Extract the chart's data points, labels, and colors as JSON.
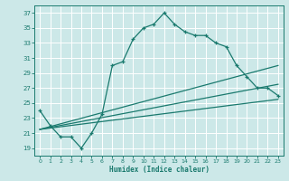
{
  "xlabel": "Humidex (Indice chaleur)",
  "bg_color": "#cce8e8",
  "grid_color": "#ffffff",
  "line_color": "#1a7a6e",
  "xlim": [
    -0.5,
    23.5
  ],
  "ylim": [
    18,
    38
  ],
  "yticks": [
    19,
    21,
    23,
    25,
    27,
    29,
    31,
    33,
    35,
    37
  ],
  "xticks": [
    0,
    1,
    2,
    3,
    4,
    5,
    6,
    7,
    8,
    9,
    10,
    11,
    12,
    13,
    14,
    15,
    16,
    17,
    18,
    19,
    20,
    21,
    22,
    23
  ],
  "series1_x": [
    0,
    1,
    2,
    3,
    4,
    5,
    6,
    7,
    8,
    9,
    10,
    11,
    12,
    13,
    14,
    15,
    16,
    17,
    18,
    19,
    20,
    21,
    22,
    23
  ],
  "series1_y": [
    24.0,
    22.0,
    20.5,
    20.5,
    19.0,
    21.0,
    23.5,
    30.0,
    30.5,
    33.5,
    35.0,
    35.5,
    37.0,
    35.5,
    34.5,
    34.0,
    34.0,
    33.0,
    32.5,
    30.0,
    28.5,
    27.0,
    27.0,
    26.0
  ],
  "series2_x": [
    0,
    23
  ],
  "series2_y": [
    21.5,
    25.5
  ],
  "series3_x": [
    0,
    23
  ],
  "series3_y": [
    21.5,
    27.5
  ],
  "series4_x": [
    0,
    23
  ],
  "series4_y": [
    21.5,
    30.0
  ]
}
